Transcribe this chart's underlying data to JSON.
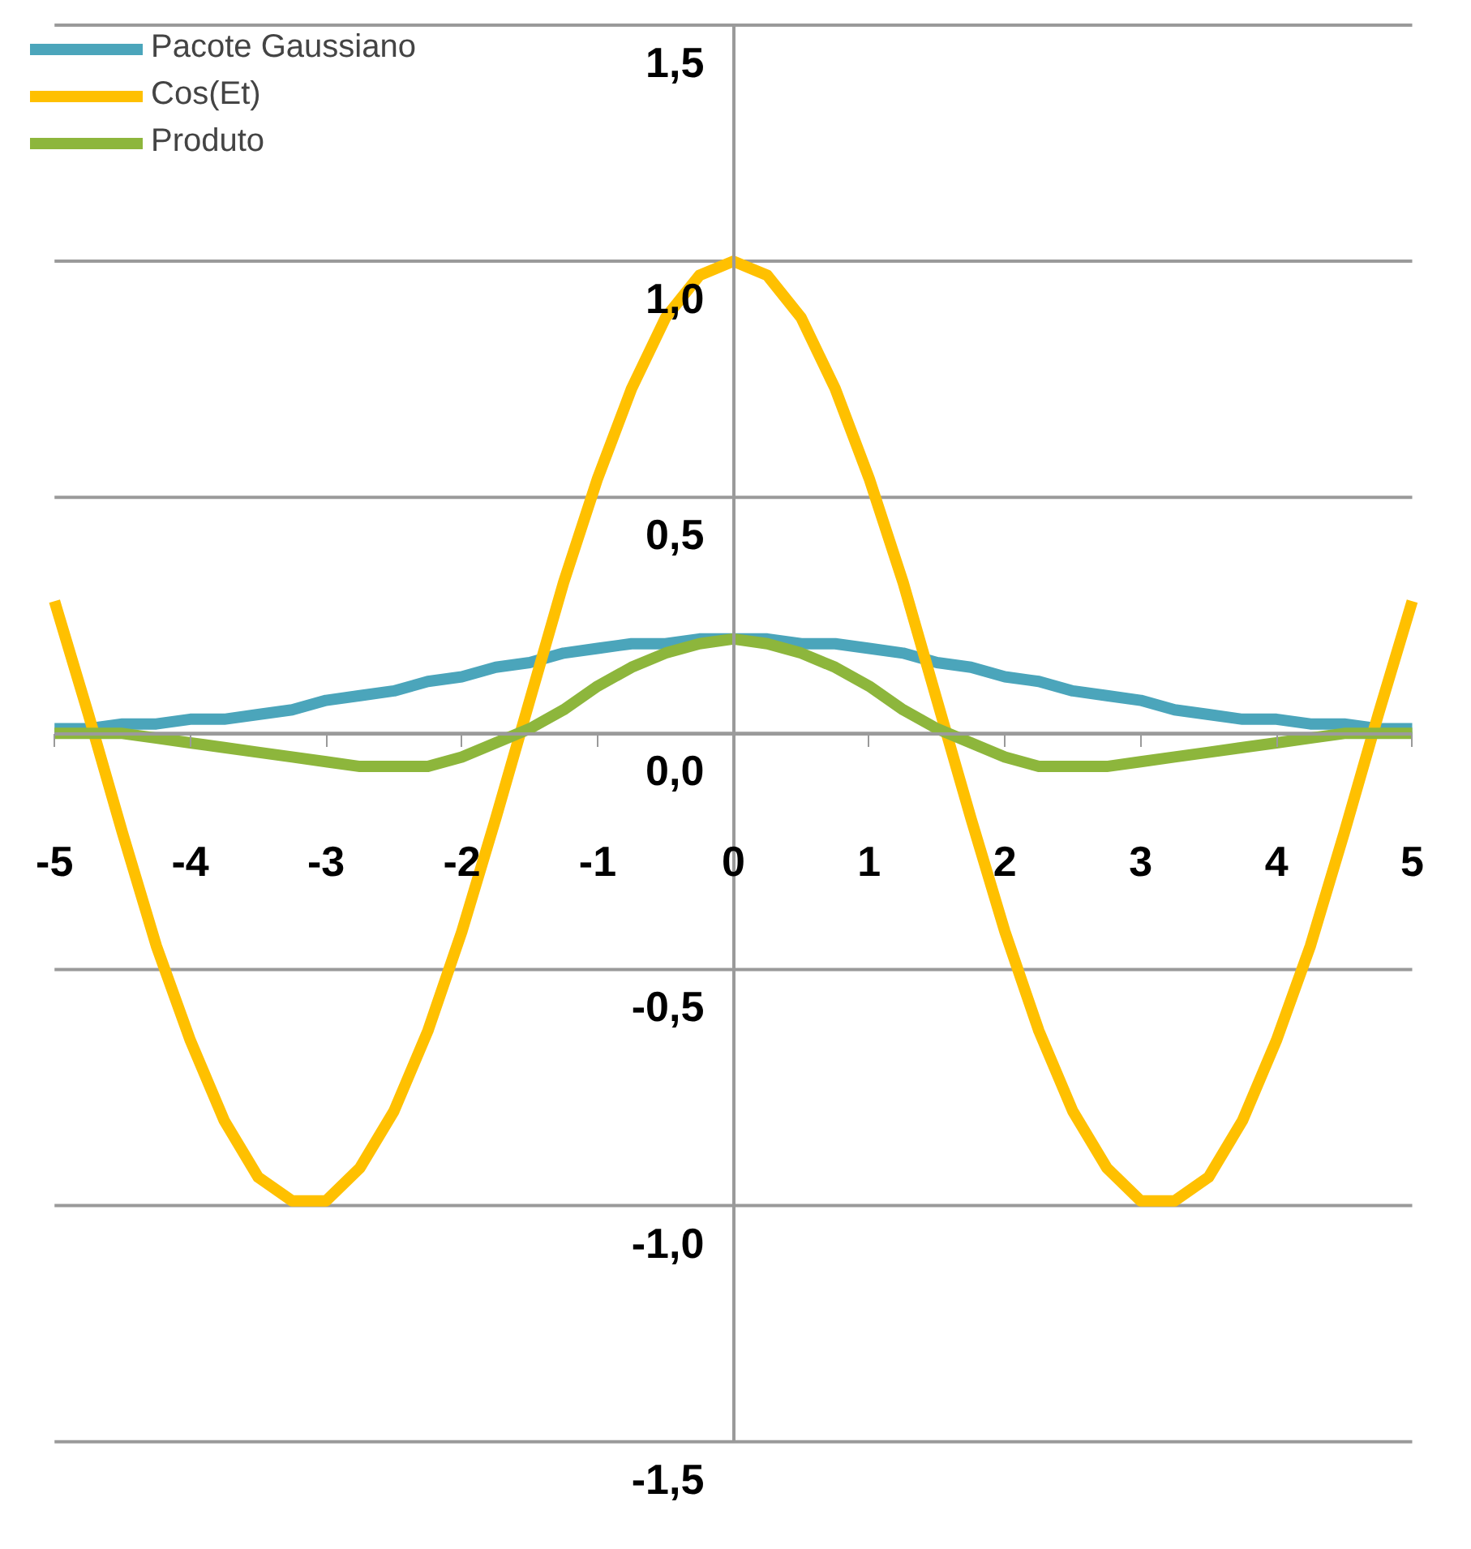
{
  "chart_data": {
    "type": "line",
    "x": [
      -5,
      -4.75,
      -4.5,
      -4.25,
      -4,
      -3.75,
      -3.5,
      -3.25,
      -3,
      -2.75,
      -2.5,
      -2.25,
      -2,
      -1.75,
      -1.5,
      -1.25,
      -1,
      -0.75,
      -0.5,
      -0.25,
      0,
      0.25,
      0.5,
      0.75,
      1,
      1.25,
      1.5,
      1.75,
      2,
      2.25,
      2.5,
      2.75,
      3,
      3.25,
      3.5,
      3.75,
      4,
      4.25,
      4.5,
      4.75,
      5
    ],
    "series": [
      {
        "name": "Pacote Gaussiano",
        "color": "#4ba5bb",
        "values": [
          0.01,
          0.01,
          0.02,
          0.02,
          0.03,
          0.03,
          0.04,
          0.05,
          0.07,
          0.08,
          0.09,
          0.11,
          0.12,
          0.14,
          0.15,
          0.17,
          0.18,
          0.19,
          0.19,
          0.2,
          0.2,
          0.2,
          0.19,
          0.19,
          0.18,
          0.17,
          0.15,
          0.14,
          0.12,
          0.11,
          0.09,
          0.08,
          0.07,
          0.05,
          0.04,
          0.03,
          0.03,
          0.02,
          0.02,
          0.01,
          0.01
        ]
      },
      {
        "name": "Cos(Et)",
        "color": "#ffc000",
        "values": [
          0.28,
          0.04,
          -0.21,
          -0.45,
          -0.65,
          -0.82,
          -0.94,
          -0.99,
          -0.99,
          -0.92,
          -0.8,
          -0.63,
          -0.42,
          -0.18,
          0.07,
          0.32,
          0.54,
          0.73,
          0.88,
          0.97,
          1.0,
          0.97,
          0.88,
          0.73,
          0.54,
          0.32,
          0.07,
          -0.18,
          -0.42,
          -0.63,
          -0.8,
          -0.92,
          -0.99,
          -0.99,
          -0.94,
          -0.82,
          -0.65,
          -0.45,
          -0.21,
          0.04,
          0.28
        ]
      },
      {
        "name": "Produto",
        "color": "#8db63c",
        "values": [
          0.0,
          0.0,
          0.0,
          -0.01,
          -0.02,
          -0.03,
          -0.04,
          -0.05,
          -0.06,
          -0.07,
          -0.07,
          -0.07,
          -0.05,
          -0.02,
          0.01,
          0.05,
          0.1,
          0.14,
          0.17,
          0.19,
          0.2,
          0.19,
          0.17,
          0.14,
          0.1,
          0.05,
          0.01,
          -0.02,
          -0.05,
          -0.07,
          -0.07,
          -0.07,
          -0.06,
          -0.05,
          -0.04,
          -0.03,
          -0.02,
          -0.01,
          0.0,
          0.0,
          0.0
        ]
      }
    ],
    "xlim": [
      -5,
      5
    ],
    "xticks": [
      {
        "value": -5,
        "label": "-5"
      },
      {
        "value": -4,
        "label": "-4"
      },
      {
        "value": -3,
        "label": "-3"
      },
      {
        "value": -2,
        "label": "-2"
      },
      {
        "value": -1,
        "label": "-1"
      },
      0,
      1,
      2,
      3,
      4,
      5
    ],
    "ylim": [
      -1.5,
      1.5
    ],
    "yticks": [
      {
        "value": -1.5,
        "label": "-1,5"
      },
      {
        "value": -1.0,
        "label": "-1,0"
      },
      {
        "value": -0.5,
        "label": "-0,5"
      },
      {
        "value": 0,
        "label": "0,0"
      },
      {
        "value": 0.5,
        "label": "0,5"
      },
      {
        "value": 1.0,
        "label": "1,0"
      },
      {
        "value": 1.5,
        "label": "1,5"
      }
    ],
    "grid": "y",
    "legend": "top left",
    "line_style": "solid",
    "marker": "none"
  }
}
